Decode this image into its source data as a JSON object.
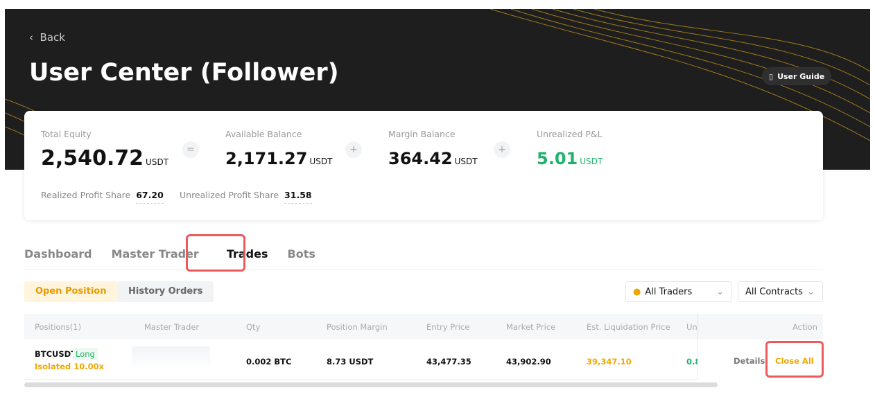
{
  "header": {
    "back": "Back",
    "title": "User Center (Follower)",
    "user_guide": "User Guide"
  },
  "summary": {
    "total_equity": {
      "label": "Total Equity",
      "value": "2,540.72",
      "unit": "USDT"
    },
    "op1": "=",
    "available_balance": {
      "label": "Available Balance",
      "value": "2,171.27",
      "unit": "USDT"
    },
    "op2": "+",
    "margin_balance": {
      "label": "Margin Balance",
      "value": "364.42",
      "unit": "USDT"
    },
    "op3": "+",
    "unrealized_pnl": {
      "label": "Unrealized P&L",
      "value": "5.01",
      "unit": "USDT"
    },
    "realized_profit_share": {
      "label": "Realized Profit Share",
      "value": "67.20"
    },
    "unrealized_profit_share": {
      "label": "Unrealized Profit Share",
      "value": "31.58"
    }
  },
  "tabs": [
    {
      "label": "Dashboard"
    },
    {
      "label": "Master Trader"
    },
    {
      "label": "Trades",
      "active": true
    },
    {
      "label": "Bots"
    }
  ],
  "subtabs": {
    "open": "Open Position",
    "history": "History Orders"
  },
  "filters": {
    "traders": "All Traders",
    "contracts": "All Contracts"
  },
  "table": {
    "columns": [
      "Positions(1)",
      "Master Trader",
      "Qty",
      "Position Margin",
      "Entry Price",
      "Market Price",
      "Est. Liquidation Price",
      "Unr",
      "Action"
    ],
    "rows": [
      {
        "symbol": "BTCUSDT",
        "side": "Long",
        "mode": "Isolated 10.00x",
        "qty": "0.002 BTC",
        "margin": "8.73 USDT",
        "entry": "43,477.35",
        "market": "43,902.90",
        "liq": "39,347.10",
        "unrealized": "0.8",
        "details": "Details",
        "close": "Close All"
      }
    ]
  },
  "colors": {
    "accent": "#f0a800",
    "green": "#20b26c",
    "highlight": "#ee5a5a"
  }
}
